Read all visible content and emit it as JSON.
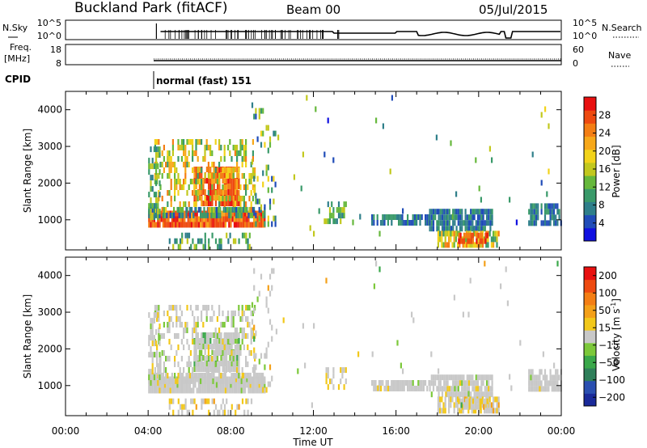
{
  "header": {
    "title": "Buckland Park (fitACF)",
    "beam": "Beam 00",
    "date": "05/Jul/2015"
  },
  "status_panels": {
    "nsky_label": "N.Sky",
    "nsearch_label": "N.Search",
    "nsky_ticks": [
      "10^5",
      "10^0"
    ],
    "nsearch_ticks": [
      "10^5",
      "10^0"
    ],
    "freq_label": "Freq.",
    "freq_unit": "[MHz]",
    "freq_ticks": [
      "18",
      "8"
    ],
    "nave_label": "Nave",
    "nave_ticks": [
      "60",
      "0"
    ],
    "cpid_label": "CPID",
    "cpid_text": "normal (fast) 151"
  },
  "chart_data": [
    {
      "type": "heatmap",
      "name": "power",
      "ylabel": "Slant Range [km]",
      "xlabel": "Time UT",
      "x_ticks": [
        "00:00",
        "04:00",
        "08:00",
        "12:00",
        "16:00",
        "20:00",
        "00:00"
      ],
      "xlim_hours": [
        0,
        24
      ],
      "ylim": [
        180,
        4500
      ],
      "y_ticks": [
        1000,
        2000,
        3000,
        4000
      ],
      "colorbar": {
        "label": "Power [dB]",
        "ticks": [
          "4",
          "8",
          "12",
          "16",
          "20",
          "24",
          "28"
        ],
        "range": [
          0,
          30
        ],
        "colors": [
          "#1010e0",
          "#204cb8",
          "#2f7f8a",
          "#3a9a6a",
          "#66b83c",
          "#c2c81e",
          "#f2d31a",
          "#f7a81a",
          "#f47e14",
          "#ee4a10",
          "#e81010"
        ]
      }
    },
    {
      "type": "heatmap",
      "name": "velocity",
      "ylabel": "Slant Range [km]",
      "xlabel": "Time UT",
      "x_ticks": [
        "00:00",
        "04:00",
        "08:00",
        "12:00",
        "16:00",
        "20:00",
        "00:00"
      ],
      "xlim_hours": [
        0,
        24
      ],
      "ylim": [
        180,
        4500
      ],
      "y_ticks": [
        1000,
        2000,
        3000,
        4000
      ],
      "colorbar": {
        "label": "Velocity [m s",
        "label_sup": "-1",
        "label_end": "]",
        "ticks": [
          "200",
          "100",
          "50",
          "15",
          "−15",
          "−50",
          "−100",
          "−200"
        ],
        "colors": [
          "#1a2a9a",
          "#2a4fb0",
          "#2f7f5a",
          "#3aa84a",
          "#7cc83a",
          "#c8c8c8",
          "#f2c81a",
          "#f4a018",
          "#f47e14",
          "#ee4a10",
          "#e81010"
        ]
      }
    }
  ]
}
